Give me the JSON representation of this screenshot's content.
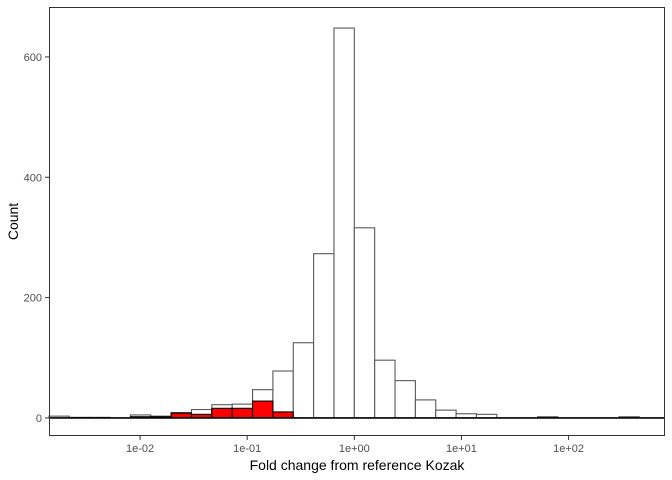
{
  "chart_data": {
    "type": "bar",
    "subtype": "histogram",
    "xlabel": "Fold change from reference Kozak",
    "ylabel": "Count",
    "x_scale": "log10",
    "x_ticks": [
      {
        "value": 0.01,
        "label": "1e-02"
      },
      {
        "value": 0.1,
        "label": "1e-01"
      },
      {
        "value": 1,
        "label": "1e+00"
      },
      {
        "value": 10,
        "label": "1e+01"
      },
      {
        "value": 100,
        "label": "1e+02"
      }
    ],
    "y_ticks": [
      {
        "value": 0,
        "label": "0"
      },
      {
        "value": 200,
        "label": "200"
      },
      {
        "value": 400,
        "label": "400"
      },
      {
        "value": 600,
        "label": "600"
      }
    ],
    "ylim": [
      -30,
      683
    ],
    "xlim_log10": [
      -2.85,
      2.9
    ],
    "grid": false,
    "legend": "none",
    "bin_width_log10": 0.19,
    "series": [
      {
        "name": "",
        "fill": "#ffffff",
        "stroke": "#595959",
        "bins": [
          {
            "x_log10": -2.755,
            "count": 3
          },
          {
            "x_log10": -2.565,
            "count": 1
          },
          {
            "x_log10": -2.375,
            "count": 1
          },
          {
            "x_log10": -1.995,
            "count": 5
          },
          {
            "x_log10": -1.805,
            "count": 3
          },
          {
            "x_log10": -1.615,
            "count": 9
          },
          {
            "x_log10": -1.425,
            "count": 14
          },
          {
            "x_log10": -1.235,
            "count": 22
          },
          {
            "x_log10": -1.045,
            "count": 23
          },
          {
            "x_log10": -0.855,
            "count": 47
          },
          {
            "x_log10": -0.665,
            "count": 78
          },
          {
            "x_log10": -0.475,
            "count": 125
          },
          {
            "x_log10": -0.285,
            "count": 273
          },
          {
            "x_log10": -0.095,
            "count": 648
          },
          {
            "x_log10": 0.095,
            "count": 316
          },
          {
            "x_log10": 0.285,
            "count": 96
          },
          {
            "x_log10": 0.475,
            "count": 62
          },
          {
            "x_log10": 0.665,
            "count": 30
          },
          {
            "x_log10": 0.855,
            "count": 13
          },
          {
            "x_log10": 1.045,
            "count": 7
          },
          {
            "x_log10": 1.235,
            "count": 6
          },
          {
            "x_log10": 1.805,
            "count": 2
          },
          {
            "x_log10": 2.565,
            "count": 2
          }
        ]
      },
      {
        "name": "",
        "fill": "#ff0000",
        "stroke": "#000000",
        "bins": [
          {
            "x_log10": -1.995,
            "count": 2
          },
          {
            "x_log10": -1.805,
            "count": 2
          },
          {
            "x_log10": -1.615,
            "count": 8
          },
          {
            "x_log10": -1.425,
            "count": 6
          },
          {
            "x_log10": -1.235,
            "count": 16
          },
          {
            "x_log10": -1.045,
            "count": 16
          },
          {
            "x_log10": -0.855,
            "count": 28
          },
          {
            "x_log10": -0.665,
            "count": 10
          }
        ]
      }
    ]
  }
}
